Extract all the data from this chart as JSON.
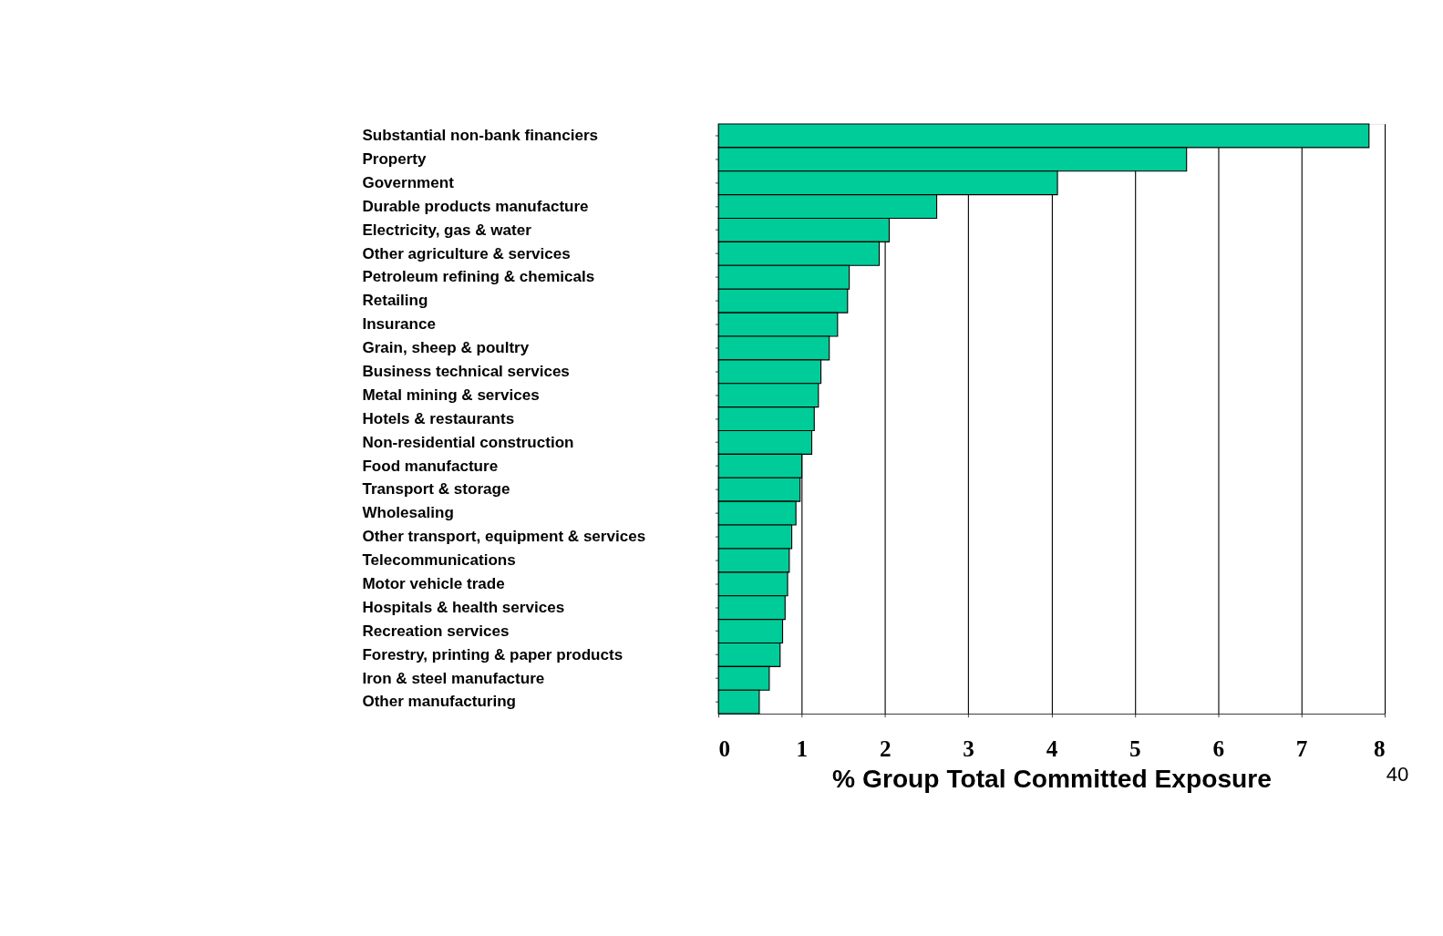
{
  "chart_data": {
    "type": "bar",
    "orientation": "horizontal",
    "categories": [
      "Substantial non-bank financiers",
      "Property",
      "Government",
      "Durable products manufacture",
      "Electricity, gas & water",
      "Other agriculture & services",
      "Petroleum refining & chemicals",
      "Retailing",
      "Insurance",
      "Grain, sheep & poultry",
      "Business technical services",
      "Metal mining & services",
      "Hotels & restaurants",
      "Non-residential construction",
      "Food manufacture",
      "Transport & storage",
      "Wholesaling",
      "Other transport, equipment & services",
      "Telecommunications",
      "Motor vehicle trade",
      "Hospitals & health services",
      "Recreation services",
      "Forestry, printing & paper products",
      "Iron & steel manufacture",
      "Other manufacturing"
    ],
    "values": [
      7.81,
      5.62,
      4.07,
      2.62,
      2.05,
      1.93,
      1.57,
      1.55,
      1.43,
      1.33,
      1.23,
      1.2,
      1.15,
      1.12,
      1.0,
      0.98,
      0.93,
      0.88,
      0.85,
      0.83,
      0.8,
      0.77,
      0.74,
      0.61,
      0.49
    ],
    "color": "#00cc99",
    "xlim": [
      0,
      8
    ],
    "xticks": [
      0,
      1,
      2,
      3,
      4,
      5,
      6,
      7,
      8
    ],
    "xlabel": "% Group Total Committed Exposure",
    "grid": "x",
    "annotations": [
      "40"
    ]
  }
}
